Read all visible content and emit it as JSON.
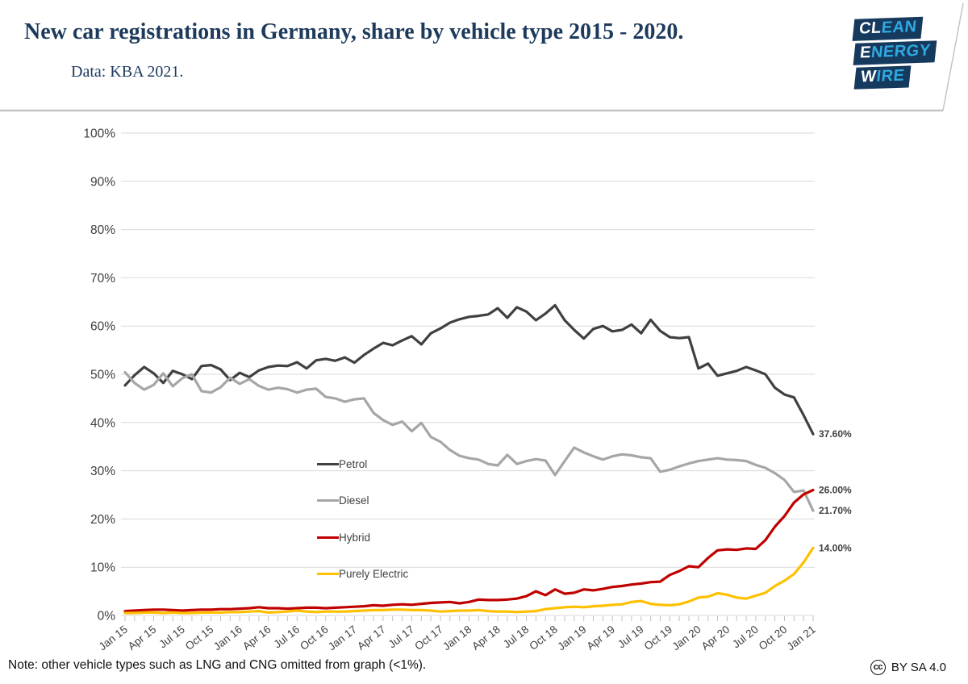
{
  "header": {
    "title": "New car registrations in Germany, share by vehicle type 2015 - 2020.",
    "subtitle": "Data: KBA 2021.",
    "logo": {
      "rows": [
        {
          "white": "CL",
          "blue": "EAN"
        },
        {
          "white": "E",
          "blue": "NERGY"
        },
        {
          "white": "W",
          "blue": "IRE"
        }
      ]
    }
  },
  "footer": {
    "note": "Note: other vehicle types such as LNG and CNG omitted from graph (<1%).",
    "license_icon_text": "cc",
    "license": "BY SA 4.0"
  },
  "colors": {
    "title_navy": "#1d3a5c",
    "logo_navy": "#16395e",
    "logo_blue": "#2fa9e1",
    "gridline": "#d9d9d9",
    "axis_text": "#404040",
    "tick": "#bfbfbf",
    "divider": "#c4c4c4"
  },
  "chart_data": {
    "type": "line",
    "title": "New car registrations in Germany, share by vehicle type 2015 - 2020.",
    "months": 73,
    "x_range": [
      "Jan 2015",
      "Jan 2021"
    ],
    "ylim": [
      0,
      100
    ],
    "grid": true,
    "legend_position": "middle-left, vertical",
    "y_tick_labels": [
      "0%",
      "10%",
      "20%",
      "30%",
      "40%",
      "50%",
      "60%",
      "70%",
      "80%",
      "90%",
      "100%"
    ],
    "x_tick_labels": [
      "Jan 15",
      "Apr 15",
      "Jul 15",
      "Oct 15",
      "Jan 16",
      "Apr 16",
      "Jul 16",
      "Oct 16",
      "Jan 17",
      "Apr 17",
      "Jul 17",
      "Oct 17",
      "Jan 18",
      "Apr 18",
      "Jul 18",
      "Oct 18",
      "Jan 19",
      "Apr 19",
      "Jul 19",
      "Oct 19",
      "Jan 20",
      "Apr 20",
      "Jul 20",
      "Oct 20",
      "Jan 21"
    ],
    "series": [
      {
        "name": "Petrol",
        "color": "#404040",
        "end_label": "37.60%",
        "values": [
          47.7,
          49.8,
          51.5,
          50.2,
          48.2,
          50.7,
          50,
          49,
          51.7,
          51.9,
          51,
          48.8,
          50.3,
          49.4,
          50.8,
          51.5,
          51.8,
          51.7,
          52.5,
          51.2,
          52.9,
          53.2,
          52.8,
          53.5,
          52.4,
          54,
          55.3,
          56.5,
          56,
          57,
          57.9,
          56.2,
          58.5,
          59.5,
          60.7,
          61.4,
          61.9,
          62.1,
          62.4,
          63.7,
          61.7,
          63.9,
          63,
          61.2,
          62.6,
          64.3,
          61.2,
          59.2,
          57.4,
          59.4,
          60,
          58.9,
          59.2,
          60.3,
          58.5,
          61.3,
          59,
          57.7,
          57.5,
          57.7,
          51.2,
          52.2,
          49.7,
          50.2,
          50.7,
          51.5,
          50.8,
          50,
          47.2,
          45.8,
          45.2,
          41.5,
          37.6
        ]
      },
      {
        "name": "Diesel",
        "color": "#a6a6a6",
        "end_label": "21.70%",
        "values": [
          50.4,
          48.2,
          46.8,
          47.8,
          50.2,
          47.5,
          49.2,
          50,
          46.5,
          46.2,
          47.3,
          49.3,
          48,
          49,
          47.6,
          46.8,
          47.2,
          46.9,
          46.2,
          46.8,
          47,
          45.3,
          45,
          44.3,
          44.8,
          45,
          42,
          40.5,
          39.5,
          40.2,
          38.2,
          39.9,
          37,
          36,
          34.3,
          33.1,
          32.6,
          32.3,
          31.4,
          31.1,
          33.3,
          31.4,
          32,
          32.4,
          32.1,
          29.1,
          32,
          34.8,
          33.8,
          33,
          32.3,
          33,
          33.4,
          33.2,
          32.8,
          32.6,
          29.8,
          30.2,
          30.9,
          31.5,
          32,
          32.3,
          32.6,
          32.3,
          32.2,
          32,
          31.2,
          30.6,
          29.5,
          28.1,
          25.6,
          25.9,
          21.7
        ]
      },
      {
        "name": "Hybrid",
        "color": "#c00000",
        "end_label": "26.00%",
        "values": [
          0.9,
          1,
          1.1,
          1.2,
          1.2,
          1.1,
          1,
          1.1,
          1.2,
          1.2,
          1.3,
          1.3,
          1.4,
          1.5,
          1.7,
          1.5,
          1.5,
          1.4,
          1.5,
          1.6,
          1.6,
          1.5,
          1.6,
          1.7,
          1.8,
          1.9,
          2.1,
          2,
          2.2,
          2.3,
          2.2,
          2.4,
          2.6,
          2.7,
          2.8,
          2.5,
          2.8,
          3.3,
          3.2,
          3.2,
          3.3,
          3.5,
          4,
          5,
          4.2,
          5.4,
          4.5,
          4.7,
          5.4,
          5.2,
          5.5,
          5.9,
          6.1,
          6.4,
          6.6,
          6.9,
          7,
          8.4,
          9.2,
          10.2,
          10,
          11.9,
          13.5,
          13.7,
          13.6,
          13.9,
          13.8,
          15.6,
          18.4,
          20.6,
          23.4,
          25.1,
          26
        ]
      },
      {
        "name": "Purely Electric",
        "color": "#ffc000",
        "end_label": "14.00%",
        "values": [
          0.5,
          0.5,
          0.6,
          0.6,
          0.5,
          0.6,
          0.5,
          0.5,
          0.6,
          0.6,
          0.6,
          0.7,
          0.7,
          0.8,
          0.9,
          0.6,
          0.7,
          0.8,
          1,
          0.8,
          0.7,
          0.8,
          0.8,
          0.8,
          0.9,
          1,
          1.1,
          1.1,
          1.2,
          1.2,
          1.1,
          1.1,
          1,
          0.8,
          0.9,
          1,
          1,
          1.1,
          0.9,
          0.8,
          0.8,
          0.7,
          0.8,
          0.9,
          1.3,
          1.5,
          1.7,
          1.8,
          1.7,
          1.9,
          2,
          2.2,
          2.3,
          2.8,
          3,
          2.4,
          2.2,
          2.1,
          2.3,
          2.9,
          3.7,
          3.9,
          4.6,
          4.3,
          3.7,
          3.5,
          4.1,
          4.7,
          6.1,
          7.2,
          8.6,
          11,
          14
        ]
      }
    ]
  }
}
